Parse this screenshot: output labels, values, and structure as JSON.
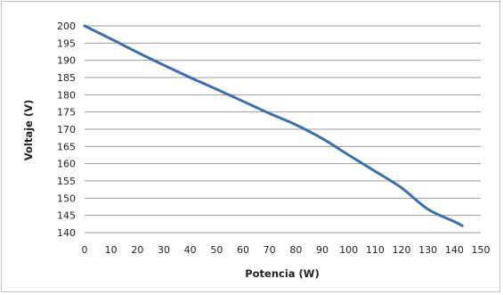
{
  "chart_data": {
    "type": "line",
    "xlabel": "Potencia (W)",
    "ylabel": "Voltaje (V)",
    "xlim": [
      0,
      150
    ],
    "ylim": [
      140,
      200
    ],
    "x_ticks": [
      "0",
      "10",
      "20",
      "30",
      "40",
      "50",
      "60",
      "70",
      "80",
      "90",
      "100",
      "110",
      "120",
      "130",
      "140",
      "150"
    ],
    "y_ticks": [
      "140",
      "145",
      "150",
      "155",
      "160",
      "165",
      "170",
      "175",
      "180",
      "185",
      "190",
      "195",
      "200"
    ],
    "grid": "horizontal",
    "legend": "none",
    "color": "#3d6fa8",
    "series": [
      {
        "x": [
          0,
          10,
          20,
          30,
          40,
          50,
          60,
          70,
          80,
          90,
          100,
          110,
          120,
          130,
          140,
          143
        ],
        "y": [
          200,
          196.2,
          192.3,
          188.6,
          185,
          181.6,
          178.1,
          174.6,
          171.3,
          167.3,
          162.5,
          157.8,
          153,
          146.8,
          143.2,
          142
        ]
      }
    ]
  }
}
